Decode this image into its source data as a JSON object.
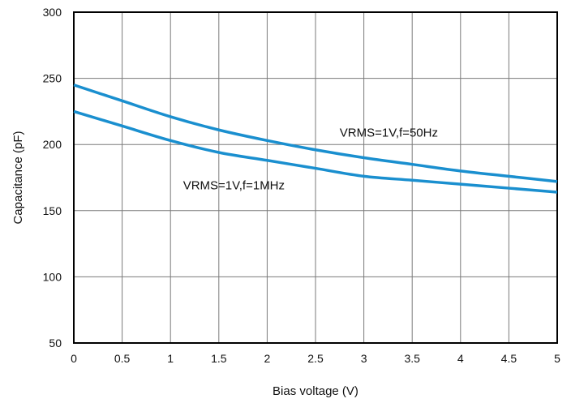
{
  "chart_data": {
    "type": "line",
    "xlabel": "Bias voltage (V)",
    "ylabel": "Capacitance (pF)",
    "xlim": [
      0,
      5
    ],
    "ylim": [
      50,
      300
    ],
    "x_ticks": [
      0,
      0.5,
      1,
      1.5,
      2,
      2.5,
      3,
      3.5,
      4,
      4.5,
      5
    ],
    "x_tick_labels": [
      "0",
      "0.5",
      "1",
      "1.5",
      "2",
      "2.5",
      "3",
      "3.5",
      "4",
      "4.5",
      "5"
    ],
    "y_ticks": [
      50,
      100,
      150,
      200,
      250,
      300
    ],
    "y_tick_labels": [
      "50",
      "100",
      "150",
      "200",
      "250",
      "300"
    ],
    "grid": true,
    "series_color": "#1a8fcf",
    "series": [
      {
        "name": "VRMS=1V,f=50Hz",
        "x": [
          0,
          0.5,
          1,
          1.5,
          2,
          2.5,
          3,
          3.5,
          4,
          4.5,
          5
        ],
        "values": [
          245,
          233,
          221,
          211,
          203,
          196,
          190,
          185,
          180,
          176,
          172
        ]
      },
      {
        "name": "VRMS=1V,f=1MHz",
        "x": [
          0,
          0.5,
          1,
          1.5,
          2,
          2.5,
          3,
          3.5,
          4,
          4.5,
          5
        ],
        "values": [
          225,
          214,
          203,
          194,
          188,
          182,
          176,
          173,
          170,
          167,
          164
        ]
      }
    ]
  }
}
